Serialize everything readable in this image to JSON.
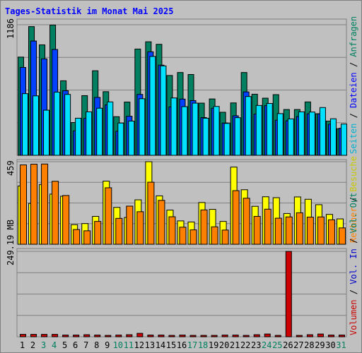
{
  "chart_data": {
    "type": "bar",
    "title": "Tages-Statistik im Monat Mai 2025",
    "days": [
      "1",
      "2",
      "3",
      "4",
      "5",
      "6",
      "7",
      "8",
      "9",
      "10",
      "11",
      "12",
      "13",
      "14",
      "15",
      "16",
      "17",
      "18",
      "19",
      "20",
      "21",
      "22",
      "23",
      "24",
      "25",
      "26",
      "27",
      "28",
      "29",
      "30",
      "31"
    ],
    "weekend_days": [
      "3",
      "4",
      "10",
      "11",
      "17",
      "18",
      "24",
      "25",
      "31"
    ],
    "panels": [
      {
        "id": "requests-files-pages",
        "ytick": "1186",
        "ymax": 1186,
        "series": [
          {
            "name": "Anfragen",
            "color": "#008060",
            "values": [
              892,
              1169,
              1003,
              1183,
              677,
              298,
              542,
              768,
              578,
              351,
              484,
              965,
              1031,
              1008,
              725,
              752,
              734,
              474,
              512,
              391,
              476,
              752,
              555,
              519,
              551,
              416,
              416,
              485,
              378,
              311,
              242
            ]
          },
          {
            "name": "Dateien",
            "color": "#0040ff",
            "values": [
              798,
              1038,
              876,
              961,
              587,
              222,
              336,
              526,
              458,
              219,
              355,
              553,
              940,
              819,
              439,
              511,
              497,
              343,
              427,
              293,
              359,
              576,
              375,
              451,
              319,
              314,
              352,
              377,
              377,
              282,
              246
            ]
          },
          {
            "name": "Seiten",
            "color": "#00e0ff",
            "values": [
              560,
              540,
              410,
              574,
              553,
              337,
              395,
              428,
              485,
              293,
              311,
              514,
              898,
              812,
              521,
              442,
              474,
              337,
              444,
              290,
              342,
              534,
              453,
              471,
              379,
              331,
              395,
              393,
              434,
              332,
              284
            ]
          }
        ]
      },
      {
        "id": "visits-hosts",
        "ytick": "459",
        "ymax": 459,
        "series": [
          {
            "name": "Besuche",
            "color": "#ffff00",
            "values": [
              324,
              227,
              332,
              279,
              267,
              109,
              115,
              155,
              351,
              205,
              149,
              247,
              459,
              269,
              190,
              130,
              124,
              232,
              194,
              127,
              429,
              303,
              211,
              264,
              259,
              171,
              263,
              250,
              220,
              166,
              141
            ]
          },
          {
            "name": "Rechner",
            "color": "#ff8000",
            "values": [
              441,
              445,
              446,
              350,
              271,
              82,
              75,
              127,
              314,
              144,
              212,
              181,
              345,
              244,
              153,
              95,
              80,
              191,
              97,
              79,
              298,
              256,
              155,
              195,
              145,
              152,
              175,
              151,
              152,
              136,
              91
            ]
          }
        ]
      },
      {
        "id": "volume",
        "ytick": "249.19 MB",
        "ymax": 249.19,
        "unit": "MB",
        "series": [
          {
            "name": "Volumen",
            "color": "#cc0000",
            "values": [
              7,
              7,
              7,
              7,
              5,
              5,
              6,
              5,
              4,
              5,
              6,
              10,
              5,
              5,
              4,
              5,
              4,
              4,
              4,
              5,
              5,
              4,
              6,
              8,
              4,
              249,
              4,
              6,
              8,
              5,
              5
            ]
          }
        ]
      }
    ],
    "right_legend": {
      "top": [
        {
          "text": "Seiten",
          "color": "#00b0d0"
        },
        {
          "text": "Dateien",
          "color": "#0000ff"
        },
        {
          "text": "Anfragen",
          "color": "#008060"
        }
      ],
      "middle": [
        {
          "text": "Rechner",
          "color": "#ff8000"
        },
        {
          "text": "Besuche",
          "color": "#c8c800"
        }
      ],
      "bottom": [
        {
          "text": "Volumen",
          "color": "#cc0000"
        },
        {
          "text": "Vol. In",
          "color": "#0000cc"
        },
        {
          "text": "Vol. Out",
          "color": "#008060"
        }
      ]
    },
    "colors": {
      "weekday_label": "#000000",
      "weekend_label": "#008060",
      "grid": "#808080",
      "background": "#c0c0c0"
    }
  }
}
